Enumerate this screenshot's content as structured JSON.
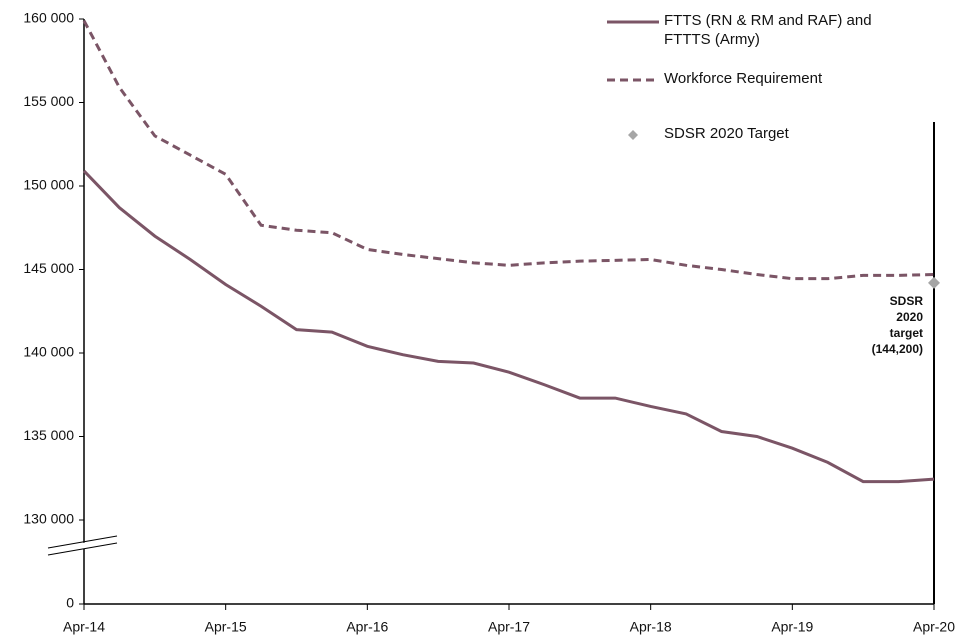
{
  "chart_data": {
    "type": "line",
    "categories": [
      "Apr-14",
      null,
      null,
      null,
      "Apr-15",
      null,
      null,
      null,
      "Apr-16",
      null,
      null,
      null,
      "Apr-17",
      null,
      null,
      null,
      "Apr-18",
      null,
      null,
      null,
      "Apr-19",
      null,
      null,
      null,
      "Apr-20"
    ],
    "series": [
      {
        "name": "FTTS (RN & RM and RAF) and FTTTS (Army)",
        "color": "#7b5566",
        "dash": "solid",
        "values": [
          150900,
          148700,
          147000,
          145600,
          144100,
          142800,
          141400,
          141250,
          140400,
          139900,
          139500,
          139400,
          138850,
          138100,
          137300,
          137300,
          136800,
          136350,
          135300,
          135000,
          134300,
          133450,
          132300,
          132300,
          132450
        ]
      },
      {
        "name": "Workforce Requirement",
        "color": "#7b5566",
        "dash": "dashed",
        "values": [
          159900,
          155900,
          153000,
          151850,
          150700,
          147650,
          147350,
          147200,
          146200,
          145900,
          145650,
          145400,
          145250,
          145400,
          145500,
          145550,
          145600,
          145250,
          145000,
          144700,
          144450,
          144450,
          144650,
          144650,
          144700
        ]
      },
      {
        "name": "SDSR 2020 Target",
        "color": "#a6a6a6",
        "marker": "diamond",
        "values": [
          null,
          null,
          null,
          null,
          null,
          null,
          null,
          null,
          null,
          null,
          null,
          null,
          null,
          null,
          null,
          null,
          null,
          null,
          null,
          null,
          null,
          null,
          null,
          null,
          144200
        ]
      }
    ],
    "annotation": [
      "SDSR",
      "2020",
      "target",
      "(144,200)"
    ],
    "ylim": [
      0,
      160000
    ],
    "ybreak": [
      0,
      125000
    ],
    "yticks": [
      0,
      {
        "value": 130000,
        "label": "130 000"
      },
      {
        "value": 135000,
        "label": "135 000"
      },
      {
        "value": 140000,
        "label": "140 000"
      },
      {
        "value": 145000,
        "label": "145 000"
      },
      {
        "value": 150000,
        "label": "150 000"
      },
      {
        "value": 155000,
        "label": "155 000"
      },
      {
        "value": 160000,
        "label": "160 000"
      }
    ],
    "grid": false,
    "legend": "top-right"
  }
}
